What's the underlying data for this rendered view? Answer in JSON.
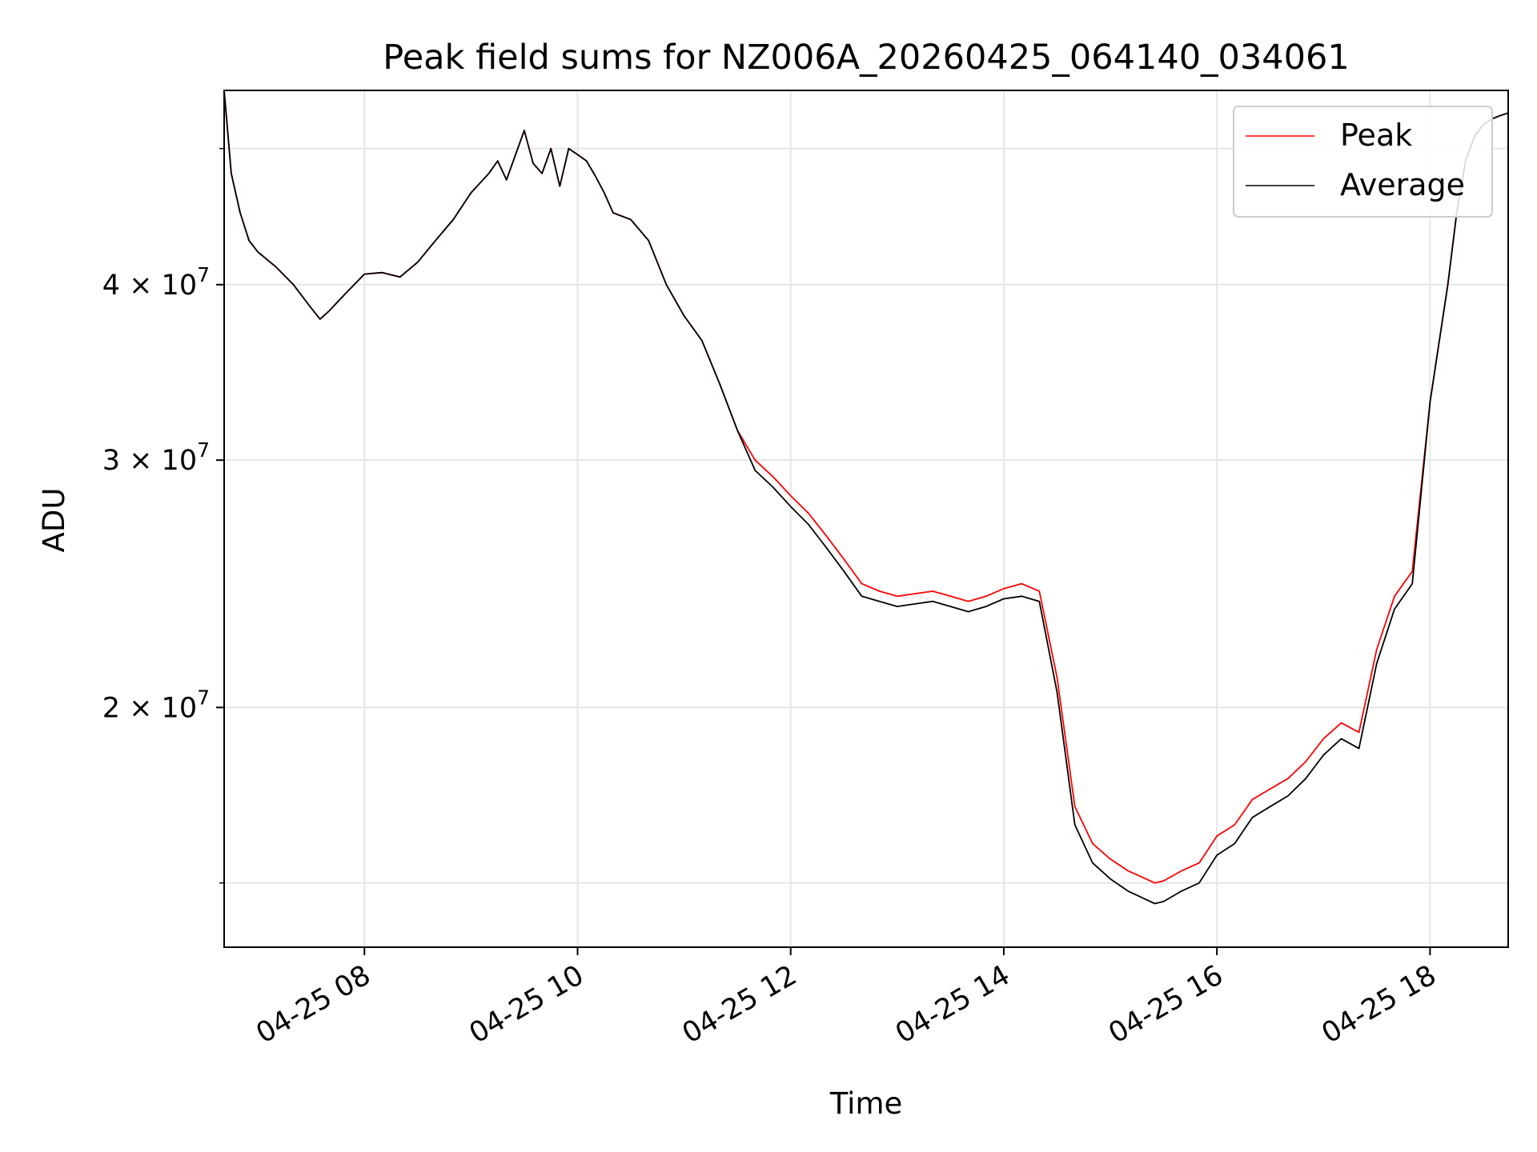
{
  "chart_data": {
    "type": "line",
    "title": "Peak field sums for NZ006A_20260425_064140_034061",
    "xlabel": "Time",
    "ylabel": "ADU",
    "x_tick_labels": [
      "04-25 08",
      "04-25 10",
      "04-25 12",
      "04-25 14",
      "04-25 16",
      "04-25 18"
    ],
    "x_tick_values": [
      "2026-04-25 08:00",
      "2026-04-25 10:00",
      "2026-04-25 12:00",
      "2026-04-25 14:00",
      "2026-04-25 16:00",
      "2026-04-25 18:00"
    ],
    "xlim": [
      "2026-04-25 06:41",
      "2026-04-25 18:44"
    ],
    "y_tick_labels": [
      {
        "base": "2",
        "exp": "7",
        "value": 20000000
      },
      {
        "base": "3",
        "exp": "7",
        "value": 30000000
      },
      {
        "base": "4",
        "exp": "7",
        "value": 40000000
      }
    ],
    "y_scale": "log",
    "ylim": [
      13500000,
      55000000
    ],
    "grid": true,
    "legend_position": "top-right",
    "series": [
      {
        "name": "Peak",
        "color": "#ff0000",
        "x": [
          "06:41",
          "06:45",
          "06:50",
          "06:55",
          "07:00",
          "07:10",
          "07:20",
          "07:30",
          "07:35",
          "07:40",
          "07:45",
          "07:50",
          "08:00",
          "08:10",
          "08:20",
          "08:30",
          "08:40",
          "08:50",
          "09:00",
          "09:10",
          "09:15",
          "09:20",
          "09:30",
          "09:35",
          "09:40",
          "09:45",
          "09:50",
          "09:55",
          "10:00",
          "10:05",
          "10:10",
          "10:15",
          "10:20",
          "10:30",
          "10:40",
          "10:50",
          "11:00",
          "11:10",
          "11:20",
          "11:30",
          "11:40",
          "11:50",
          "12:00",
          "12:10",
          "12:20",
          "12:30",
          "12:40",
          "12:50",
          "13:00",
          "13:10",
          "13:20",
          "13:30",
          "13:40",
          "13:50",
          "14:00",
          "14:10",
          "14:20",
          "14:30",
          "14:40",
          "14:50",
          "15:00",
          "15:10",
          "15:15",
          "15:20",
          "15:25",
          "15:30",
          "15:40",
          "15:50",
          "16:00",
          "16:10",
          "16:20",
          "16:30",
          "16:40",
          "16:50",
          "17:00",
          "17:10",
          "17:20",
          "17:30",
          "17:40",
          "17:50",
          "18:00",
          "18:10",
          "18:15",
          "18:20",
          "18:25",
          "18:30",
          "18:35",
          "18:40",
          "18:44"
        ],
        "y": [
          55000000,
          48000000,
          45000000,
          43000000,
          42200000,
          41200000,
          40000000,
          38500000,
          37800000,
          38300000,
          38900000,
          39500000,
          40700000,
          40800000,
          40500000,
          41500000,
          43000000,
          44500000,
          46500000,
          48000000,
          49000000,
          47500000,
          51500000,
          48800000,
          48000000,
          50000000,
          47000000,
          50000000,
          49500000,
          49000000,
          47800000,
          46500000,
          45000000,
          44500000,
          43000000,
          40000000,
          38000000,
          36500000,
          34000000,
          31500000,
          30000000,
          29200000,
          28300000,
          27500000,
          26500000,
          25500000,
          24500000,
          24200000,
          24000000,
          24100000,
          24200000,
          24000000,
          23800000,
          24000000,
          24300000,
          24500000,
          24200000,
          21000000,
          17000000,
          16000000,
          15600000,
          15300000,
          15200000,
          15100000,
          15000000,
          15050000,
          15300000,
          15500000,
          16200000,
          16500000,
          17200000,
          17500000,
          17800000,
          18300000,
          19000000,
          19500000,
          19200000,
          22000000,
          24000000,
          25000000,
          33000000,
          40000000,
          45000000,
          49000000,
          51000000,
          52000000,
          52500000,
          52800000,
          53000000
        ],
        "note": ""
      },
      {
        "name": "Average",
        "color": "#000000",
        "x": [
          "06:41",
          "06:45",
          "06:50",
          "06:55",
          "07:00",
          "07:10",
          "07:20",
          "07:30",
          "07:35",
          "07:40",
          "07:45",
          "07:50",
          "08:00",
          "08:10",
          "08:20",
          "08:30",
          "08:40",
          "08:50",
          "09:00",
          "09:10",
          "09:15",
          "09:20",
          "09:30",
          "09:35",
          "09:40",
          "09:45",
          "09:50",
          "09:55",
          "10:00",
          "10:05",
          "10:10",
          "10:15",
          "10:20",
          "10:30",
          "10:40",
          "10:50",
          "11:00",
          "11:10",
          "11:20",
          "11:30",
          "11:40",
          "11:50",
          "12:00",
          "12:10",
          "12:20",
          "12:30",
          "12:40",
          "12:50",
          "13:00",
          "13:10",
          "13:20",
          "13:30",
          "13:40",
          "13:50",
          "14:00",
          "14:10",
          "14:20",
          "14:30",
          "14:40",
          "14:50",
          "15:00",
          "15:10",
          "15:15",
          "15:20",
          "15:25",
          "15:30",
          "15:40",
          "15:50",
          "16:00",
          "16:10",
          "16:20",
          "16:30",
          "16:40",
          "16:50",
          "17:00",
          "17:10",
          "17:20",
          "17:30",
          "17:40",
          "17:50",
          "18:00",
          "18:10",
          "18:15",
          "18:20",
          "18:25",
          "18:30",
          "18:35",
          "18:40",
          "18:44"
        ],
        "y": [
          55000000,
          48000000,
          45000000,
          43000000,
          42200000,
          41200000,
          40000000,
          38500000,
          37800000,
          38300000,
          38900000,
          39500000,
          40700000,
          40800000,
          40500000,
          41500000,
          43000000,
          44500000,
          46500000,
          48000000,
          49000000,
          47500000,
          51500000,
          48800000,
          48000000,
          50000000,
          47000000,
          50000000,
          49500000,
          49000000,
          47800000,
          46500000,
          45000000,
          44500000,
          43000000,
          40000000,
          38000000,
          36500000,
          34000000,
          31500000,
          29500000,
          28700000,
          27800000,
          27000000,
          26000000,
          25000000,
          24000000,
          23800000,
          23600000,
          23700000,
          23800000,
          23600000,
          23400000,
          23600000,
          23900000,
          24000000,
          23800000,
          20500000,
          16500000,
          15500000,
          15100000,
          14800000,
          14700000,
          14600000,
          14500000,
          14550000,
          14800000,
          15000000,
          15700000,
          16000000,
          16700000,
          17000000,
          17300000,
          17800000,
          18500000,
          19000000,
          18700000,
          21500000,
          23500000,
          24500000,
          33000000,
          40000000,
          45000000,
          49000000,
          51000000,
          52000000,
          52500000,
          52800000,
          53000000
        ]
      }
    ]
  }
}
